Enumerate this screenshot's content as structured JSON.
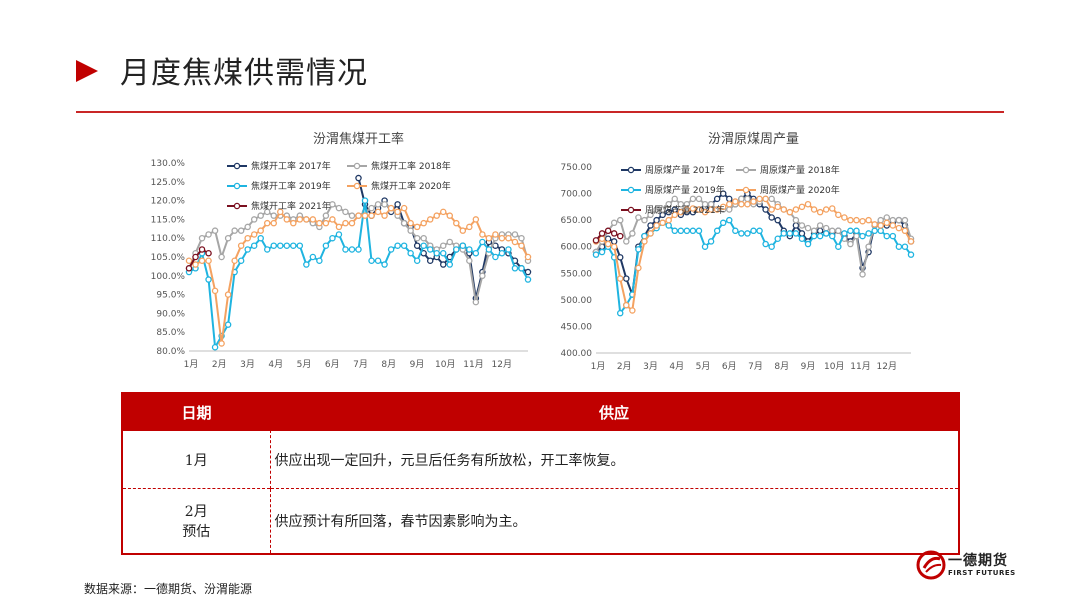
{
  "page": {
    "title": "月度焦煤供需情况"
  },
  "source": "数据来源：一德期货、汾渭能源",
  "logo": {
    "name": "一德期货",
    "sub": "FIRST FUTURES"
  },
  "table": {
    "headers": [
      "日期",
      "供应"
    ],
    "rows": [
      {
        "date": "1月",
        "text": "供应出现一定回升，元旦后任务有所放松，开工率恢复。"
      },
      {
        "date_line1": "2月",
        "date_line2": "预估",
        "text": "供应预计有所回落，春节因素影响为主。"
      }
    ]
  },
  "colors": {
    "accent": "#c00000",
    "y2017": "#1f3864",
    "y2018": "#a6a6a6",
    "y2019": "#1fb4e0",
    "y2020": "#f4a261",
    "y2021": "#7b1020"
  },
  "chart_data": [
    {
      "type": "line",
      "title": "汾渭焦煤开工率",
      "x_labels": [
        "1月",
        "2月",
        "3月",
        "4月",
        "5月",
        "6月",
        "7月",
        "8月",
        "9月",
        "10月",
        "11月",
        "12月"
      ],
      "x_range": [
        0,
        52
      ],
      "ylim": [
        80,
        130
      ],
      "y_ticks": [
        "80.0%",
        "85.0%",
        "90.0%",
        "95.0%",
        "100.0%",
        "105.0%",
        "110.0%",
        "115.0%",
        "120.0%",
        "125.0%",
        "130.0%"
      ],
      "legend": [
        "焦煤开工率 2017年",
        "焦煤开工率 2018年",
        "焦煤开工率 2019年",
        "焦煤开工率 2020年",
        "焦煤开工率 2021年"
      ],
      "series": [
        {
          "name": "焦煤开工率 2017年",
          "color": "#1f3864",
          "x": [
            26,
            27,
            28,
            29,
            30,
            31,
            32,
            33,
            34,
            35,
            36,
            37,
            38,
            39,
            40,
            41,
            42,
            43,
            44,
            45,
            46,
            47,
            48,
            49,
            50,
            51,
            52
          ],
          "y": [
            126,
            119,
            116,
            118,
            120,
            117,
            119,
            114,
            113,
            108,
            106,
            104,
            105,
            103,
            105,
            107,
            108,
            106,
            94,
            101,
            109,
            108,
            107,
            106,
            104,
            102,
            101
          ]
        },
        {
          "name": "焦煤开工率 2018年",
          "color": "#a6a6a6",
          "x": [
            0,
            1,
            2,
            3,
            4,
            5,
            6,
            7,
            8,
            9,
            10,
            11,
            12,
            13,
            14,
            15,
            16,
            17,
            18,
            19,
            20,
            21,
            22,
            23,
            24,
            25,
            26,
            27,
            28,
            29,
            30,
            31,
            32,
            33,
            34,
            35,
            36,
            37,
            38,
            39,
            40,
            41,
            42,
            43,
            44,
            45,
            46,
            47,
            48,
            49,
            50,
            51,
            52
          ],
          "y": [
            102,
            106,
            110,
            111,
            112,
            105,
            110,
            112,
            112,
            113,
            115,
            116,
            117,
            116,
            116,
            116,
            115,
            116,
            115,
            114,
            113,
            116,
            119,
            118,
            117,
            116,
            116,
            117,
            118,
            119,
            119,
            118,
            116,
            114,
            112,
            110,
            110,
            108,
            107,
            108,
            109,
            108,
            107,
            104,
            93,
            100,
            106,
            110,
            111,
            111,
            111,
            110,
            104
          ]
        },
        {
          "name": "焦煤开工率 2019年",
          "color": "#1fb4e0",
          "x": [
            0,
            1,
            2,
            3,
            4,
            5,
            6,
            7,
            8,
            9,
            10,
            11,
            12,
            13,
            14,
            15,
            16,
            17,
            18,
            19,
            20,
            21,
            22,
            23,
            24,
            25,
            26,
            27,
            28,
            29,
            30,
            31,
            32,
            33,
            34,
            35,
            36,
            37,
            38,
            39,
            40,
            41,
            42,
            43,
            44,
            45,
            46,
            47,
            48,
            49,
            50,
            51,
            52
          ],
          "y": [
            101,
            102,
            106,
            99,
            81,
            84,
            87,
            101,
            104,
            107,
            108,
            110,
            107,
            108,
            108,
            108,
            108,
            108,
            103,
            105,
            104,
            108,
            110,
            111,
            107,
            107,
            107,
            120,
            104,
            104,
            103,
            107,
            108,
            108,
            106,
            104,
            108,
            107,
            106,
            106,
            103,
            107,
            108,
            107,
            106,
            109,
            107,
            105,
            106,
            107,
            102,
            102,
            99
          ]
        },
        {
          "name": "焦煤开工率 2020年",
          "color": "#f4a261",
          "x": [
            0,
            1,
            2,
            3,
            4,
            5,
            6,
            7,
            8,
            9,
            10,
            11,
            12,
            13,
            14,
            15,
            16,
            17,
            18,
            19,
            20,
            21,
            22,
            23,
            24,
            25,
            26,
            27,
            28,
            29,
            30,
            31,
            32,
            33,
            34,
            35,
            36,
            37,
            38,
            39,
            40,
            41,
            42,
            43,
            44,
            45,
            46,
            47,
            48,
            49,
            50,
            51,
            52
          ],
          "y": [
            104,
            103,
            104,
            104,
            96,
            82,
            95,
            104,
            108,
            110,
            111,
            112,
            114,
            114,
            117,
            115,
            114,
            115,
            115,
            115,
            114,
            114,
            115,
            113,
            114,
            114,
            116,
            116,
            116,
            117,
            116,
            118,
            117,
            118,
            114,
            113,
            114,
            115,
            116,
            117,
            116,
            114,
            112,
            113,
            115,
            111,
            110,
            111,
            110,
            110,
            109,
            108,
            105
          ]
        },
        {
          "name": "焦煤开工率 2021年",
          "color": "#7b1020",
          "x": [
            0,
            1,
            2,
            3
          ],
          "y": [
            102,
            105,
            107,
            106
          ]
        }
      ]
    },
    {
      "type": "line",
      "title": "汾渭原煤周产量",
      "x_labels": [
        "1月",
        "2月",
        "3月",
        "4月",
        "5月",
        "6月",
        "7月",
        "8月",
        "9月",
        "10月",
        "11月",
        "12月"
      ],
      "x_range": [
        0,
        52
      ],
      "ylim": [
        400,
        750
      ],
      "y_ticks": [
        "400.00",
        "450.00",
        "500.00",
        "550.00",
        "600.00",
        "650.00",
        "700.00",
        "750.00"
      ],
      "legend": [
        "周原煤产量 2017年",
        "周原煤产量 2018年",
        "周原煤产量 2019年",
        "周原煤产量 2020年",
        "周原煤产量 2021年"
      ],
      "series": [
        {
          "name": "周原煤产量 2017年",
          "color": "#1f3864",
          "x": [
            0,
            1,
            2,
            3,
            4,
            5,
            6,
            7,
            8,
            9,
            10,
            11,
            12,
            13,
            14,
            15,
            16,
            17,
            18,
            19,
            20,
            21,
            22,
            23,
            24,
            25,
            26,
            27,
            28,
            29,
            30,
            31,
            32,
            33,
            34,
            35,
            36,
            37,
            38,
            39,
            40,
            41,
            42,
            43,
            44,
            45,
            46,
            47,
            48,
            49,
            50,
            51,
            52
          ],
          "y": [
            590,
            600,
            615,
            610,
            580,
            540,
            510,
            600,
            620,
            640,
            650,
            660,
            665,
            670,
            660,
            665,
            665,
            670,
            675,
            680,
            690,
            700,
            690,
            680,
            690,
            700,
            690,
            680,
            670,
            655,
            650,
            630,
            620,
            640,
            625,
            610,
            625,
            630,
            625,
            625,
            630,
            620,
            610,
            625,
            560,
            590,
            640,
            640,
            640,
            645,
            650,
            640,
            610
          ]
        },
        {
          "name": "周原煤产量 2018年",
          "color": "#a6a6a6",
          "x": [
            0,
            1,
            2,
            3,
            4,
            5,
            6,
            7,
            8,
            9,
            10,
            11,
            12,
            13,
            14,
            15,
            16,
            17,
            18,
            19,
            20,
            21,
            22,
            23,
            24,
            25,
            26,
            27,
            28,
            29,
            30,
            31,
            32,
            33,
            34,
            35,
            36,
            37,
            38,
            39,
            40,
            41,
            42,
            43,
            44,
            45,
            46,
            47,
            48,
            49,
            50,
            51,
            52
          ],
          "y": [
            590,
            610,
            630,
            645,
            650,
            610,
            625,
            655,
            650,
            660,
            670,
            670,
            680,
            690,
            680,
            680,
            690,
            690,
            680,
            680,
            670,
            670,
            670,
            680,
            690,
            690,
            680,
            685,
            690,
            690,
            680,
            670,
            665,
            650,
            640,
            635,
            630,
            640,
            635,
            630,
            630,
            615,
            605,
            620,
            548,
            600,
            640,
            650,
            655,
            650,
            650,
            650,
            615
          ]
        },
        {
          "name": "周原煤产量 2019年",
          "color": "#1fb4e0",
          "x": [
            0,
            1,
            2,
            3,
            4,
            5,
            6,
            7,
            8,
            9,
            10,
            11,
            12,
            13,
            14,
            15,
            16,
            17,
            18,
            19,
            20,
            21,
            22,
            23,
            24,
            25,
            26,
            27,
            28,
            29,
            30,
            31,
            32,
            33,
            34,
            35,
            36,
            37,
            38,
            39,
            40,
            41,
            42,
            43,
            44,
            45,
            46,
            47,
            48,
            49,
            50,
            51,
            52
          ],
          "y": [
            585,
            590,
            600,
            580,
            475,
            490,
            510,
            595,
            620,
            625,
            635,
            645,
            640,
            630,
            630,
            630,
            630,
            630,
            600,
            610,
            630,
            645,
            650,
            630,
            625,
            625,
            630,
            630,
            605,
            600,
            615,
            625,
            625,
            625,
            615,
            605,
            620,
            620,
            625,
            620,
            600,
            625,
            630,
            630,
            620,
            625,
            630,
            630,
            620,
            620,
            600,
            600,
            585
          ]
        },
        {
          "name": "周原煤产量 2020年",
          "color": "#f4a261",
          "x": [
            0,
            1,
            2,
            3,
            4,
            5,
            6,
            7,
            8,
            9,
            10,
            11,
            12,
            13,
            14,
            15,
            16,
            17,
            18,
            19,
            20,
            21,
            22,
            23,
            24,
            25,
            26,
            27,
            28,
            29,
            30,
            31,
            32,
            33,
            34,
            35,
            36,
            37,
            38,
            39,
            40,
            41,
            42,
            43,
            44,
            45,
            46,
            47,
            48,
            49,
            50,
            51,
            52
          ],
          "y": [
            610,
            615,
            605,
            600,
            540,
            490,
            480,
            560,
            610,
            625,
            640,
            645,
            650,
            660,
            665,
            670,
            672,
            670,
            665,
            670,
            670,
            675,
            680,
            685,
            680,
            680,
            685,
            690,
            690,
            670,
            675,
            670,
            665,
            670,
            675,
            680,
            670,
            665,
            670,
            672,
            660,
            655,
            650,
            650,
            648,
            650,
            642,
            640,
            645,
            640,
            635,
            630,
            610
          ]
        },
        {
          "name": "周原煤产量 2021年",
          "color": "#7b1020",
          "x": [
            0,
            1,
            2,
            3,
            4
          ],
          "y": [
            612,
            625,
            630,
            625,
            620
          ]
        }
      ]
    }
  ]
}
